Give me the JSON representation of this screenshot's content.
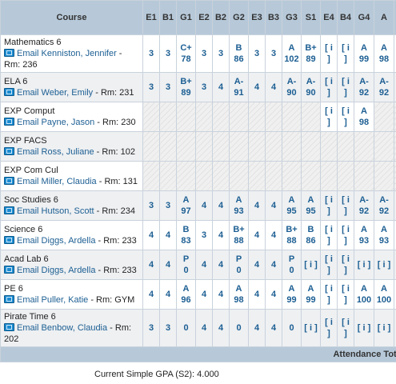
{
  "headers": [
    "Course",
    "E1",
    "B1",
    "G1",
    "E2",
    "B2",
    "G2",
    "E3",
    "B3",
    "G3",
    "S1",
    "E4",
    "B4",
    "G4",
    "A",
    "S2"
  ],
  "rows": [
    {
      "course": "Mathematics 6",
      "teacher": "Email Kenniston, Jennifer",
      "room": "Rm: 236",
      "cells": [
        [
          "3"
        ],
        [
          "3"
        ],
        [
          "C+",
          "78"
        ],
        [
          "3"
        ],
        [
          "3"
        ],
        [
          "B",
          "86"
        ],
        [
          "3"
        ],
        [
          "3"
        ],
        [
          "A",
          "102"
        ],
        [
          "B+",
          "89"
        ],
        [
          "[ i",
          "]"
        ],
        [
          "[ i",
          "]"
        ],
        [
          "A",
          "99"
        ],
        [
          "A",
          "98"
        ],
        [
          "A",
          "98"
        ]
      ],
      "na": []
    },
    {
      "course": "ELA 6",
      "teacher": "Email Weber, Emily",
      "room": "Rm: 231",
      "cells": [
        [
          "3"
        ],
        [
          "3"
        ],
        [
          "B+",
          "89"
        ],
        [
          "3"
        ],
        [
          "4"
        ],
        [
          "A-",
          "91"
        ],
        [
          "4"
        ],
        [
          "4"
        ],
        [
          "A-",
          "90"
        ],
        [
          "A-",
          "90"
        ],
        [
          "[ i",
          "]"
        ],
        [
          "[ i",
          "]"
        ],
        [
          "A-",
          "92"
        ],
        [
          "A-",
          "92"
        ],
        [
          "A-",
          "92"
        ]
      ],
      "na": []
    },
    {
      "course": "EXP Comput",
      "teacher": "Email Payne, Jason",
      "room": "Rm: 230",
      "cells": [
        [
          ""
        ],
        [
          ""
        ],
        [
          ""
        ],
        [
          ""
        ],
        [
          ""
        ],
        [
          ""
        ],
        [
          ""
        ],
        [
          ""
        ],
        [
          ""
        ],
        [
          ""
        ],
        [
          "[ i",
          "]"
        ],
        [
          "[ i",
          "]"
        ],
        [
          "A",
          "98"
        ],
        [
          ""
        ],
        [
          ""
        ]
      ],
      "na": [
        0,
        1,
        2,
        3,
        4,
        5,
        6,
        7,
        8,
        9,
        13,
        14
      ]
    },
    {
      "course": "EXP FACS",
      "teacher": "Email Ross, Juliane",
      "room": "Rm: 102",
      "cells": [
        [
          ""
        ],
        [
          ""
        ],
        [
          ""
        ],
        [
          ""
        ],
        [
          ""
        ],
        [
          ""
        ],
        [
          ""
        ],
        [
          ""
        ],
        [
          ""
        ],
        [
          ""
        ],
        [
          ""
        ],
        [
          ""
        ],
        [
          ""
        ],
        [
          ""
        ],
        [
          ""
        ]
      ],
      "na": [
        0,
        1,
        2,
        3,
        4,
        5,
        6,
        7,
        8,
        9,
        10,
        11,
        12,
        13,
        14
      ]
    },
    {
      "course": "EXP Com Cul",
      "teacher": "Email Miller, Claudia",
      "room": "Rm: 131",
      "cells": [
        [
          ""
        ],
        [
          ""
        ],
        [
          ""
        ],
        [
          ""
        ],
        [
          ""
        ],
        [
          ""
        ],
        [
          ""
        ],
        [
          ""
        ],
        [
          ""
        ],
        [
          ""
        ],
        [
          ""
        ],
        [
          ""
        ],
        [
          ""
        ],
        [
          ""
        ],
        [
          ""
        ]
      ],
      "na": [
        0,
        1,
        2,
        3,
        4,
        5,
        6,
        7,
        8,
        9,
        10,
        11,
        12,
        13,
        14
      ]
    },
    {
      "course": "Soc Studies 6",
      "teacher": "Email Hutson, Scott",
      "room": "Rm: 234",
      "cells": [
        [
          "3"
        ],
        [
          "3"
        ],
        [
          "A",
          "97"
        ],
        [
          "4"
        ],
        [
          "4"
        ],
        [
          "A",
          "93"
        ],
        [
          "4"
        ],
        [
          "4"
        ],
        [
          "A",
          "95"
        ],
        [
          "A",
          "95"
        ],
        [
          "[ i",
          "]"
        ],
        [
          "[ i",
          "]"
        ],
        [
          "A-",
          "92"
        ],
        [
          "A-",
          "92"
        ],
        [
          "A-",
          "92"
        ]
      ],
      "na": []
    },
    {
      "course": "Science 6",
      "teacher": "Email Diggs, Ardella",
      "room": "Rm: 233",
      "cells": [
        [
          "4"
        ],
        [
          "4"
        ],
        [
          "B",
          "83"
        ],
        [
          "3"
        ],
        [
          "4"
        ],
        [
          "B+",
          "88"
        ],
        [
          "4"
        ],
        [
          "4"
        ],
        [
          "B+",
          "88"
        ],
        [
          "B",
          "86"
        ],
        [
          "[ i",
          "]"
        ],
        [
          "[ i",
          "]"
        ],
        [
          "A",
          "93"
        ],
        [
          "A",
          "93"
        ],
        [
          "A",
          "93"
        ]
      ],
      "na": []
    },
    {
      "course": "Acad Lab 6",
      "teacher": "Email Diggs, Ardella",
      "room": "Rm: 233",
      "cells": [
        [
          "4"
        ],
        [
          "4"
        ],
        [
          "P",
          "0"
        ],
        [
          "4"
        ],
        [
          "4"
        ],
        [
          "P",
          "0"
        ],
        [
          "4"
        ],
        [
          "4"
        ],
        [
          "P",
          "0"
        ],
        [
          "[ i ]"
        ],
        [
          "[ i",
          "]"
        ],
        [
          "[ i",
          "]"
        ],
        [
          "[ i ]"
        ],
        [
          "[ i ]"
        ],
        [
          "[ i ]"
        ]
      ],
      "na": []
    },
    {
      "course": "PE 6",
      "teacher": "Email Puller, Katie",
      "room": "Rm: GYM",
      "cells": [
        [
          "4"
        ],
        [
          "4"
        ],
        [
          "A",
          "96"
        ],
        [
          "4"
        ],
        [
          "4"
        ],
        [
          "A",
          "98"
        ],
        [
          "4"
        ],
        [
          "4"
        ],
        [
          "A",
          "99"
        ],
        [
          "A",
          "99"
        ],
        [
          "[ i",
          "]"
        ],
        [
          "[ i",
          "]"
        ],
        [
          "A",
          "100"
        ],
        [
          "A",
          "100"
        ],
        [
          "A",
          "100"
        ]
      ],
      "na": []
    },
    {
      "course": "Pirate Time 6",
      "teacher": "Email Benbow, Claudia",
      "room": "Rm: 202",
      "cells": [
        [
          "3"
        ],
        [
          "3"
        ],
        [
          "0"
        ],
        [
          "4"
        ],
        [
          "4"
        ],
        [
          "0"
        ],
        [
          "4"
        ],
        [
          "4"
        ],
        [
          "0"
        ],
        [
          "[ i ]"
        ],
        [
          "[ i",
          "]"
        ],
        [
          "[ i",
          "]"
        ],
        [
          "[ i ]"
        ],
        [
          "[ i ]"
        ],
        [
          "[ i ]"
        ]
      ],
      "na": []
    }
  ],
  "footer": {
    "attendance_totals": "Attendance Totals"
  },
  "gpa": "Current Simple GPA (S2): 4.000"
}
